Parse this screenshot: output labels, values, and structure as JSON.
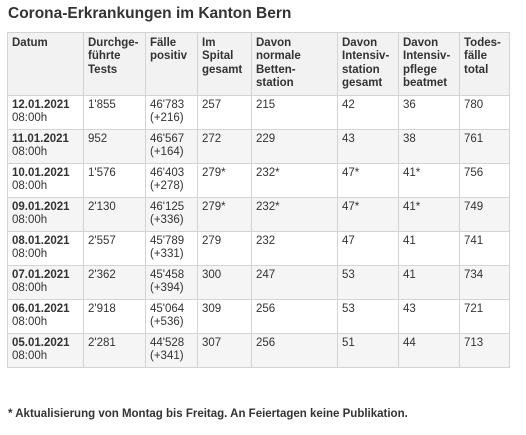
{
  "title": "Corona-Erkrankungen im Kanton Bern",
  "table": {
    "headers": [
      "Datum",
      "Durchge-\nführte\nTests",
      "Fälle\npositiv",
      "Im\nSpital\ngesamt",
      "Davon\nnormale\nBetten-\nstation",
      "Davon\nIntensiv-\nstation\ngesamt",
      "Davon\nIntensiv-\npflege\nbeatmet",
      "Todes-\nfälle\ntotal"
    ],
    "rows": [
      {
        "date": "12.01.2021",
        "time": "08:00h",
        "tests": "1'855",
        "cases": "46'783\n(+216)",
        "hospital": "257",
        "normal": "215",
        "icu": "42",
        "ventilated": "36",
        "deaths": "780"
      },
      {
        "date": "11.01.2021",
        "time": "08:00h",
        "tests": "952",
        "cases": "46'567\n(+164)",
        "hospital": "272",
        "normal": "229",
        "icu": "43",
        "ventilated": "38",
        "deaths": "761"
      },
      {
        "date": "10.01.2021",
        "time": "08:00h",
        "tests": "1'576",
        "cases": "46'403\n(+278)",
        "hospital": "279*",
        "normal": "232*",
        "icu": "47*",
        "ventilated": "41*",
        "deaths": "756"
      },
      {
        "date": "09.01.2021",
        "time": "08:00h",
        "tests": "2'130",
        "cases": "46'125\n(+336)",
        "hospital": "279*",
        "normal": "232*",
        "icu": "47*",
        "ventilated": "41*",
        "deaths": "749"
      },
      {
        "date": "08.01.2021",
        "time": "08:00h",
        "tests": "2'557",
        "cases": "45'789\n(+331)",
        "hospital": "279",
        "normal": "232",
        "icu": "47",
        "ventilated": "41",
        "deaths": "741"
      },
      {
        "date": "07.01.2021",
        "time": "08:00h",
        "tests": "2'362",
        "cases": "45'458\n(+394)",
        "hospital": "300",
        "normal": "247",
        "icu": "53",
        "ventilated": "41",
        "deaths": "734"
      },
      {
        "date": "06.01.2021",
        "time": "08:00h",
        "tests": "2'918",
        "cases": "45'064\n(+536)",
        "hospital": "309",
        "normal": "256",
        "icu": "53",
        "ventilated": "43",
        "deaths": "721"
      },
      {
        "date": "05.01.2021",
        "time": "08:00h",
        "tests": "2'281",
        "cases": "44'528\n(+341)",
        "hospital": "307",
        "normal": "256",
        "icu": "51",
        "ventilated": "44",
        "deaths": "713"
      }
    ]
  },
  "footnote": "* Aktualisierung von Montag bis Freitag. An Feiertagen keine Publikation."
}
